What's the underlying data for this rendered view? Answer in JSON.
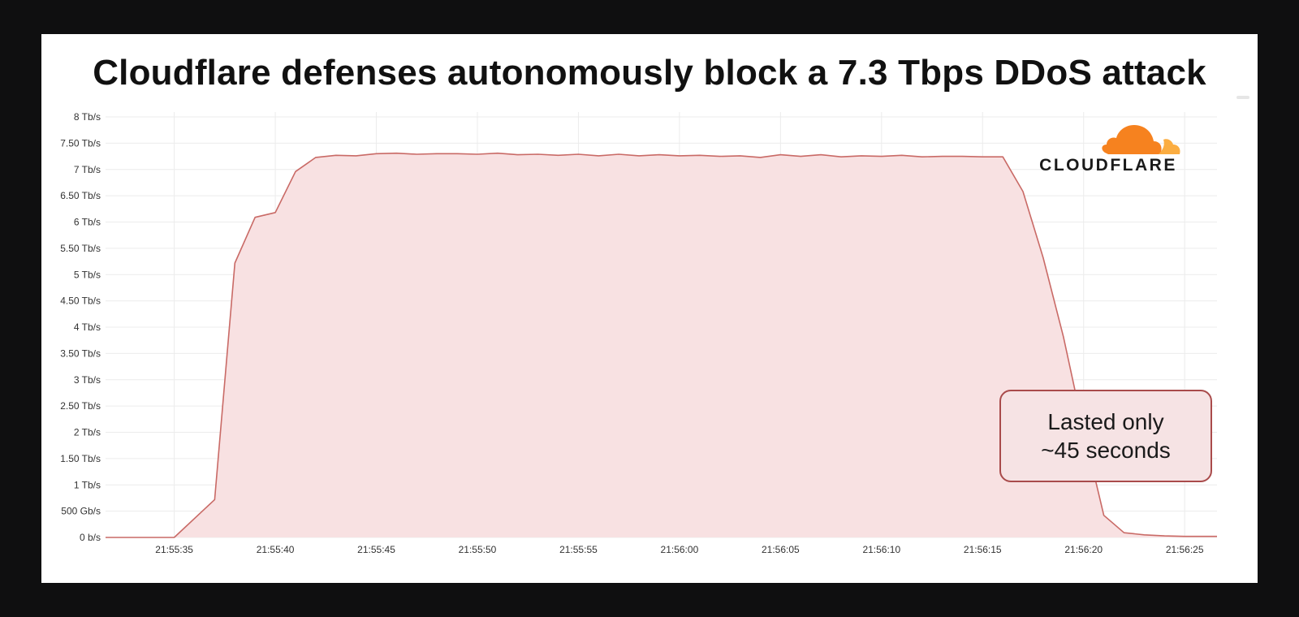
{
  "chart_data": {
    "type": "area",
    "title": "Cloudflare defenses autonomously block a 7.3 Tbps DDoS attack",
    "xlabel": "",
    "ylabel": "",
    "ylim": [
      0,
      8
    ],
    "y_ticks": [
      {
        "value": 0,
        "label": "0 b/s"
      },
      {
        "value": 0.5,
        "label": "500 Gb/s"
      },
      {
        "value": 1,
        "label": "1 Tb/s"
      },
      {
        "value": 1.5,
        "label": "1.50 Tb/s"
      },
      {
        "value": 2,
        "label": "2 Tb/s"
      },
      {
        "value": 2.5,
        "label": "2.50 Tb/s"
      },
      {
        "value": 3,
        "label": "3 Tb/s"
      },
      {
        "value": 3.5,
        "label": "3.50 Tb/s"
      },
      {
        "value": 4,
        "label": "4 Tb/s"
      },
      {
        "value": 4.5,
        "label": "4.50 Tb/s"
      },
      {
        "value": 5,
        "label": "5 Tb/s"
      },
      {
        "value": 5.5,
        "label": "5.50 Tb/s"
      },
      {
        "value": 6,
        "label": "6 Tb/s"
      },
      {
        "value": 6.5,
        "label": "6.50 Tb/s"
      },
      {
        "value": 7,
        "label": "7 Tb/s"
      },
      {
        "value": 7.5,
        "label": "7.50 Tb/s"
      },
      {
        "value": 8,
        "label": "8 Tb/s"
      }
    ],
    "x_ticks": [
      "21:55:35",
      "21:55:40",
      "21:55:45",
      "21:55:50",
      "21:55:55",
      "21:56:00",
      "21:56:05",
      "21:56:10",
      "21:56:15",
      "21:56:20",
      "21:56:25"
    ],
    "x_range": [
      "21:55:31.6",
      "21:56:26.6"
    ],
    "grid": true,
    "series": [
      {
        "color": "#c96a66",
        "fill": "#f8e1e2",
        "x": [
          "21:55:31.6",
          "21:55:35",
          "21:55:37",
          "21:55:38",
          "21:55:39",
          "21:55:40",
          "21:55:41",
          "21:55:42",
          "21:55:43",
          "21:55:44",
          "21:55:45",
          "21:55:46",
          "21:55:47",
          "21:55:48",
          "21:55:49",
          "21:55:50",
          "21:55:51",
          "21:55:52",
          "21:55:53",
          "21:55:54",
          "21:55:55",
          "21:55:56",
          "21:55:57",
          "21:55:58",
          "21:55:59",
          "21:56:00",
          "21:56:01",
          "21:56:02",
          "21:56:03",
          "21:56:04",
          "21:56:05",
          "21:56:06",
          "21:56:07",
          "21:56:08",
          "21:56:09",
          "21:56:10",
          "21:56:11",
          "21:56:12",
          "21:56:13",
          "21:56:14",
          "21:56:15",
          "21:56:16",
          "21:56:17",
          "21:56:18",
          "21:56:19",
          "21:56:20",
          "21:56:21",
          "21:56:22",
          "21:56:23",
          "21:56:24",
          "21:56:25",
          "21:56:26.6"
        ],
        "values": [
          0,
          0,
          0.72,
          5.22,
          6.09,
          6.18,
          6.96,
          7.23,
          7.27,
          7.26,
          7.3,
          7.31,
          7.29,
          7.3,
          7.3,
          7.29,
          7.31,
          7.28,
          7.29,
          7.27,
          7.29,
          7.26,
          7.29,
          7.26,
          7.28,
          7.26,
          7.27,
          7.25,
          7.26,
          7.23,
          7.28,
          7.25,
          7.28,
          7.24,
          7.26,
          7.25,
          7.27,
          7.24,
          7.25,
          7.25,
          7.24,
          7.24,
          6.58,
          5.32,
          3.82,
          2.04,
          0.42,
          0.09,
          0.05,
          0.03,
          0.02,
          0.02
        ]
      }
    ]
  },
  "annotation": {
    "line1": "Lasted only",
    "line2": "~45 seconds"
  },
  "logo": {
    "wordmark": "CLOUDFLARE",
    "cloud_colors": [
      "#f6821f",
      "#fbad41"
    ],
    "icon": "cloudflare-cloud-icon"
  },
  "colors": {
    "background": "#0f0f10",
    "card": "#ffffff",
    "line": "#c96a66",
    "area": "#f8e1e2",
    "annotation_border": "#a94b4b"
  }
}
